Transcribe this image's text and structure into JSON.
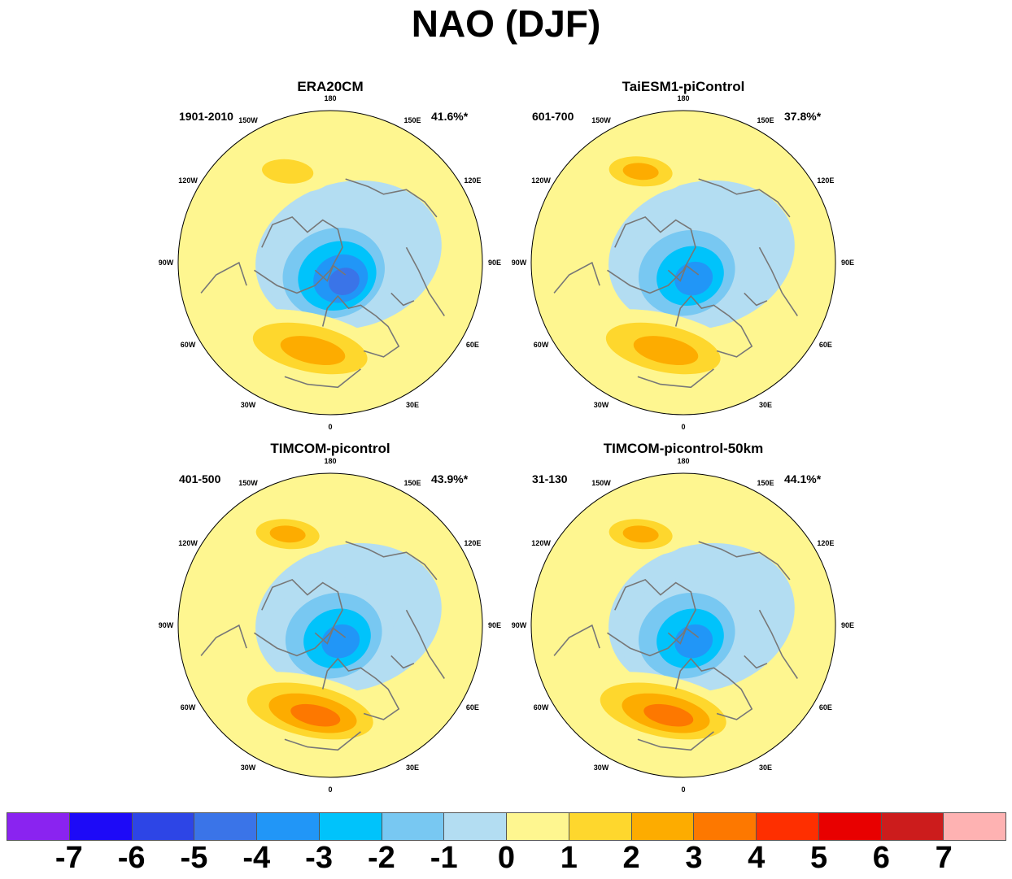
{
  "title": "NAO (DJF)",
  "chart_data": {
    "type": "heatmap",
    "projection": "north polar stereographic",
    "panels": [
      {
        "title": "ERA20CM",
        "period": "1901-2010",
        "variance_explained": "41.6%*",
        "pattern": {
          "arctic_low_min": -6,
          "atlantic_high_max": 3,
          "pacific_high_max": 2
        }
      },
      {
        "title": "TaiESM1-piControl",
        "period": "601-700",
        "variance_explained": "37.8%*",
        "pattern": {
          "arctic_low_min": -5,
          "atlantic_high_max": 3,
          "pacific_high_max": 3
        }
      },
      {
        "title": "TIMCOM-picontrol",
        "period": "401-500",
        "variance_explained": "43.9%*",
        "pattern": {
          "arctic_low_min": -5,
          "atlantic_high_max": 4,
          "pacific_high_max": 3
        }
      },
      {
        "title": "TIMCOM-picontrol-50km",
        "period": "31-130",
        "variance_explained": "44.1%*",
        "pattern": {
          "arctic_low_min": -5,
          "atlantic_high_max": 4,
          "pacific_high_max": 3
        }
      }
    ],
    "longitude_labels": [
      "180",
      "150E",
      "120E",
      "90E",
      "60E",
      "30E",
      "0",
      "30W",
      "60W",
      "90W",
      "120W",
      "150W"
    ],
    "colorbar": {
      "labels": [
        "-7",
        "-6",
        "-5",
        "-4",
        "-3",
        "-2",
        "-1",
        "0",
        "1",
        "2",
        "3",
        "4",
        "5",
        "6",
        "7"
      ],
      "colors": [
        "#8a23f0",
        "#1d0af7",
        "#2d45e6",
        "#3a74e8",
        "#2196f7",
        "#00c3fb",
        "#78c8f2",
        "#b3ddf2",
        "#fef690",
        "#fed72d",
        "#fdac00",
        "#fd7800",
        "#fe2f00",
        "#e80000",
        "#cc1c1c",
        "#feb2b2"
      ]
    }
  }
}
